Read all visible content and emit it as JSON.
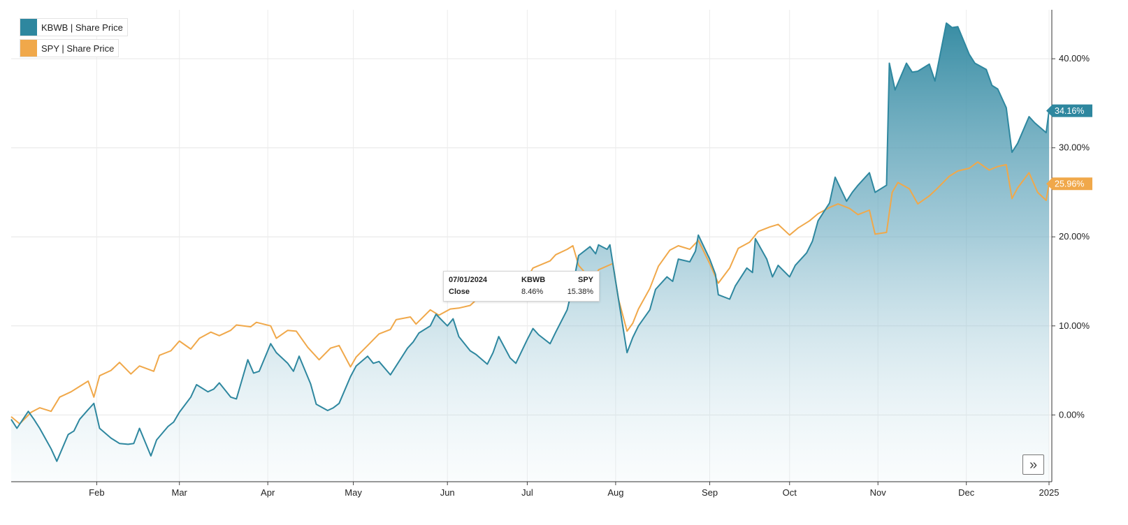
{
  "legend": {
    "items": [
      {
        "label": "KBWB | Share Price",
        "color": "#2e879f"
      },
      {
        "label": "SPY | Share Price",
        "color": "#f0a84a"
      }
    ]
  },
  "tooltip": {
    "date": "07/01/2024",
    "row_label": "Close",
    "col1": "KBWB",
    "col2": "SPY",
    "val1": "8.46%",
    "val2": "15.38%"
  },
  "end_labels": [
    "34.16%",
    "25.96%"
  ],
  "expand_icon": "double-chevron-right-icon",
  "expand_glyph": "»",
  "chart_data": {
    "type": "line",
    "x_axis": {
      "ticks": [
        "Feb",
        "Mar",
        "Apr",
        "May",
        "Jun",
        "Jul",
        "Aug",
        "Sep",
        "Oct",
        "Nov",
        "Dec",
        "2025"
      ],
      "start": "2024-01-02",
      "end": "2024-12-31"
    },
    "y_axis": {
      "ticks": [
        "0.00%",
        "10.00%",
        "20.00%",
        "30.00%",
        "40.00%"
      ],
      "tick_values": [
        0,
        10,
        20,
        30,
        40
      ],
      "ylim": [
        -7.5,
        45.5
      ],
      "unit": "%",
      "position": "right"
    },
    "grid": true,
    "legend_position": "top-left",
    "series": [
      {
        "name": "KBWB | Share Price",
        "color": "#2e879f",
        "area_fill": true,
        "last_value": 34.16,
        "points": [
          [
            "2024-01-02",
            -0.5
          ],
          [
            "2024-01-04",
            -1.5
          ],
          [
            "2024-01-08",
            0.4
          ],
          [
            "2024-01-10",
            -0.5
          ],
          [
            "2024-01-12",
            -1.5
          ],
          [
            "2024-01-16",
            -3.8
          ],
          [
            "2024-01-18",
            -5.2
          ],
          [
            "2024-01-22",
            -2.2
          ],
          [
            "2024-01-24",
            -1.8
          ],
          [
            "2024-01-26",
            -0.5
          ],
          [
            "2024-01-29",
            0.6
          ],
          [
            "2024-01-31",
            1.3
          ],
          [
            "2024-02-02",
            -1.5
          ],
          [
            "2024-02-06",
            -2.6
          ],
          [
            "2024-02-09",
            -3.2
          ],
          [
            "2024-02-12",
            -3.3
          ],
          [
            "2024-02-14",
            -3.2
          ],
          [
            "2024-02-16",
            -1.5
          ],
          [
            "2024-02-20",
            -4.6
          ],
          [
            "2024-02-22",
            -2.8
          ],
          [
            "2024-02-26",
            -1.3
          ],
          [
            "2024-02-28",
            -0.8
          ],
          [
            "2024-03-01",
            0.3
          ],
          [
            "2024-03-05",
            2.0
          ],
          [
            "2024-03-07",
            3.4
          ],
          [
            "2024-03-11",
            2.6
          ],
          [
            "2024-03-13",
            2.9
          ],
          [
            "2024-03-15",
            3.6
          ],
          [
            "2024-03-19",
            2.0
          ],
          [
            "2024-03-21",
            1.8
          ],
          [
            "2024-03-25",
            6.2
          ],
          [
            "2024-03-27",
            4.7
          ],
          [
            "2024-03-29",
            4.9
          ],
          [
            "2024-04-02",
            8.0
          ],
          [
            "2024-04-04",
            7.0
          ],
          [
            "2024-04-08",
            5.8
          ],
          [
            "2024-04-10",
            4.9
          ],
          [
            "2024-04-12",
            6.6
          ],
          [
            "2024-04-16",
            3.5
          ],
          [
            "2024-04-18",
            1.2
          ],
          [
            "2024-04-22",
            0.5
          ],
          [
            "2024-04-24",
            0.8
          ],
          [
            "2024-04-26",
            1.3
          ],
          [
            "2024-04-30",
            4.3
          ],
          [
            "2024-05-02",
            5.5
          ],
          [
            "2024-05-06",
            6.6
          ],
          [
            "2024-05-08",
            5.8
          ],
          [
            "2024-05-10",
            6.0
          ],
          [
            "2024-05-14",
            4.5
          ],
          [
            "2024-05-16",
            5.5
          ],
          [
            "2024-05-20",
            7.5
          ],
          [
            "2024-05-22",
            8.2
          ],
          [
            "2024-05-24",
            9.2
          ],
          [
            "2024-05-28",
            10.0
          ],
          [
            "2024-05-30",
            11.3
          ],
          [
            "2024-06-03",
            10.0
          ],
          [
            "2024-06-05",
            10.8
          ],
          [
            "2024-06-07",
            8.8
          ],
          [
            "2024-06-11",
            7.2
          ],
          [
            "2024-06-13",
            6.8
          ],
          [
            "2024-06-17",
            5.7
          ],
          [
            "2024-06-19",
            7.0
          ],
          [
            "2024-06-21",
            8.8
          ],
          [
            "2024-06-25",
            6.4
          ],
          [
            "2024-06-27",
            5.8
          ],
          [
            "2024-07-01",
            8.46
          ],
          [
            "2024-07-03",
            9.7
          ],
          [
            "2024-07-05",
            9.0
          ],
          [
            "2024-07-09",
            8.0
          ],
          [
            "2024-07-11",
            9.3
          ],
          [
            "2024-07-15",
            11.8
          ],
          [
            "2024-07-17",
            14.5
          ],
          [
            "2024-07-19",
            17.9
          ],
          [
            "2024-07-23",
            18.9
          ],
          [
            "2024-07-25",
            18.1
          ],
          [
            "2024-07-26",
            19.1
          ],
          [
            "2024-07-29",
            18.6
          ],
          [
            "2024-07-30",
            19.1
          ],
          [
            "2024-08-01",
            15.0
          ],
          [
            "2024-08-05",
            7.0
          ],
          [
            "2024-08-07",
            8.7
          ],
          [
            "2024-08-09",
            10.0
          ],
          [
            "2024-08-13",
            11.8
          ],
          [
            "2024-08-15",
            14.1
          ],
          [
            "2024-08-19",
            15.5
          ],
          [
            "2024-08-21",
            15.0
          ],
          [
            "2024-08-23",
            17.5
          ],
          [
            "2024-08-27",
            17.2
          ],
          [
            "2024-08-29",
            18.4
          ],
          [
            "2024-08-30",
            20.2
          ],
          [
            "2024-09-03",
            17.5
          ],
          [
            "2024-09-05",
            15.8
          ],
          [
            "2024-09-06",
            13.5
          ],
          [
            "2024-09-10",
            13.0
          ],
          [
            "2024-09-12",
            14.5
          ],
          [
            "2024-09-16",
            16.5
          ],
          [
            "2024-09-18",
            16.0
          ],
          [
            "2024-09-19",
            19.8
          ],
          [
            "2024-09-23",
            17.5
          ],
          [
            "2024-09-25",
            15.5
          ],
          [
            "2024-09-27",
            16.8
          ],
          [
            "2024-10-01",
            15.5
          ],
          [
            "2024-10-03",
            16.8
          ],
          [
            "2024-10-07",
            18.2
          ],
          [
            "2024-10-09",
            19.5
          ],
          [
            "2024-10-11",
            21.8
          ],
          [
            "2024-10-15",
            23.8
          ],
          [
            "2024-10-17",
            26.7
          ],
          [
            "2024-10-21",
            24.0
          ],
          [
            "2024-10-23",
            25.0
          ],
          [
            "2024-10-25",
            25.8
          ],
          [
            "2024-10-29",
            27.2
          ],
          [
            "2024-10-31",
            25.0
          ],
          [
            "2024-11-04",
            25.8
          ],
          [
            "2024-11-05",
            39.5
          ],
          [
            "2024-11-07",
            36.5
          ],
          [
            "2024-11-11",
            39.5
          ],
          [
            "2024-11-13",
            38.5
          ],
          [
            "2024-11-15",
            38.6
          ],
          [
            "2024-11-19",
            39.4
          ],
          [
            "2024-11-21",
            37.5
          ],
          [
            "2024-11-25",
            44.0
          ],
          [
            "2024-11-27",
            43.5
          ],
          [
            "2024-11-29",
            43.6
          ],
          [
            "2024-12-03",
            40.5
          ],
          [
            "2024-12-05",
            39.5
          ],
          [
            "2024-12-09",
            38.8
          ],
          [
            "2024-12-11",
            37.0
          ],
          [
            "2024-12-13",
            36.6
          ],
          [
            "2024-12-16",
            34.5
          ],
          [
            "2024-12-18",
            29.5
          ],
          [
            "2024-12-20",
            30.5
          ],
          [
            "2024-12-24",
            33.5
          ],
          [
            "2024-12-26",
            32.8
          ],
          [
            "2024-12-30",
            31.7
          ],
          [
            "2024-12-31",
            34.16
          ]
        ]
      },
      {
        "name": "SPY | Share Price",
        "color": "#f0a84a",
        "area_fill": false,
        "last_value": 25.96,
        "points": [
          [
            "2024-01-02",
            -0.2
          ],
          [
            "2024-01-05",
            -1.0
          ],
          [
            "2024-01-09",
            0.3
          ],
          [
            "2024-01-12",
            0.8
          ],
          [
            "2024-01-16",
            0.4
          ],
          [
            "2024-01-19",
            2.0
          ],
          [
            "2024-01-23",
            2.6
          ],
          [
            "2024-01-26",
            3.2
          ],
          [
            "2024-01-29",
            3.8
          ],
          [
            "2024-01-31",
            2.0
          ],
          [
            "2024-02-02",
            4.4
          ],
          [
            "2024-02-06",
            5.0
          ],
          [
            "2024-02-09",
            5.9
          ],
          [
            "2024-02-13",
            4.6
          ],
          [
            "2024-02-16",
            5.5
          ],
          [
            "2024-02-21",
            4.9
          ],
          [
            "2024-02-23",
            6.7
          ],
          [
            "2024-02-27",
            7.2
          ],
          [
            "2024-03-01",
            8.3
          ],
          [
            "2024-03-05",
            7.4
          ],
          [
            "2024-03-08",
            8.6
          ],
          [
            "2024-03-12",
            9.3
          ],
          [
            "2024-03-15",
            8.9
          ],
          [
            "2024-03-19",
            9.5
          ],
          [
            "2024-03-21",
            10.1
          ],
          [
            "2024-03-26",
            9.9
          ],
          [
            "2024-03-28",
            10.4
          ],
          [
            "2024-04-02",
            10.0
          ],
          [
            "2024-04-04",
            8.6
          ],
          [
            "2024-04-08",
            9.5
          ],
          [
            "2024-04-11",
            9.4
          ],
          [
            "2024-04-15",
            7.6
          ],
          [
            "2024-04-19",
            6.2
          ],
          [
            "2024-04-23",
            7.5
          ],
          [
            "2024-04-26",
            7.8
          ],
          [
            "2024-04-30",
            5.4
          ],
          [
            "2024-05-02",
            6.5
          ],
          [
            "2024-05-06",
            7.8
          ],
          [
            "2024-05-10",
            9.1
          ],
          [
            "2024-05-14",
            9.6
          ],
          [
            "2024-05-16",
            10.7
          ],
          [
            "2024-05-21",
            11.0
          ],
          [
            "2024-05-23",
            10.2
          ],
          [
            "2024-05-28",
            11.8
          ],
          [
            "2024-05-31",
            11.2
          ],
          [
            "2024-06-04",
            11.9
          ],
          [
            "2024-06-07",
            12.0
          ],
          [
            "2024-06-11",
            12.3
          ],
          [
            "2024-06-14",
            13.2
          ],
          [
            "2024-06-18",
            14.0
          ],
          [
            "2024-06-21",
            13.8
          ],
          [
            "2024-06-25",
            14.4
          ],
          [
            "2024-06-28",
            14.8
          ],
          [
            "2024-07-01",
            15.38
          ],
          [
            "2024-07-03",
            16.5
          ],
          [
            "2024-07-09",
            17.3
          ],
          [
            "2024-07-11",
            18.0
          ],
          [
            "2024-07-15",
            18.6
          ],
          [
            "2024-07-17",
            19.0
          ],
          [
            "2024-07-19",
            16.8
          ],
          [
            "2024-07-24",
            15.0
          ],
          [
            "2024-07-26",
            16.3
          ],
          [
            "2024-07-31",
            17.0
          ],
          [
            "2024-08-02",
            13.0
          ],
          [
            "2024-08-05",
            9.4
          ],
          [
            "2024-08-07",
            10.3
          ],
          [
            "2024-08-09",
            11.9
          ],
          [
            "2024-08-13",
            14.2
          ],
          [
            "2024-08-16",
            16.7
          ],
          [
            "2024-08-20",
            18.5
          ],
          [
            "2024-08-23",
            19.0
          ],
          [
            "2024-08-27",
            18.6
          ],
          [
            "2024-08-30",
            19.6
          ],
          [
            "2024-09-03",
            17.0
          ],
          [
            "2024-09-06",
            14.8
          ],
          [
            "2024-09-10",
            16.5
          ],
          [
            "2024-09-13",
            18.7
          ],
          [
            "2024-09-17",
            19.4
          ],
          [
            "2024-09-20",
            20.6
          ],
          [
            "2024-09-24",
            21.1
          ],
          [
            "2024-09-27",
            21.4
          ],
          [
            "2024-10-01",
            20.2
          ],
          [
            "2024-10-04",
            21.0
          ],
          [
            "2024-10-08",
            21.8
          ],
          [
            "2024-10-11",
            22.6
          ],
          [
            "2024-10-15",
            23.3
          ],
          [
            "2024-10-18",
            23.7
          ],
          [
            "2024-10-22",
            23.2
          ],
          [
            "2024-10-25",
            22.5
          ],
          [
            "2024-10-29",
            23.0
          ],
          [
            "2024-10-31",
            20.3
          ],
          [
            "2024-11-04",
            20.5
          ],
          [
            "2024-11-06",
            25.0
          ],
          [
            "2024-11-08",
            26.1
          ],
          [
            "2024-11-12",
            25.4
          ],
          [
            "2024-11-15",
            23.7
          ],
          [
            "2024-11-19",
            24.6
          ],
          [
            "2024-11-22",
            25.5
          ],
          [
            "2024-11-26",
            26.8
          ],
          [
            "2024-11-29",
            27.4
          ],
          [
            "2024-12-03",
            27.7
          ],
          [
            "2024-12-06",
            28.4
          ],
          [
            "2024-12-10",
            27.5
          ],
          [
            "2024-12-13",
            27.9
          ],
          [
            "2024-12-16",
            28.1
          ],
          [
            "2024-12-18",
            24.3
          ],
          [
            "2024-12-20",
            25.5
          ],
          [
            "2024-12-24",
            27.2
          ],
          [
            "2024-12-27",
            25.0
          ],
          [
            "2024-12-30",
            24.1
          ],
          [
            "2024-12-31",
            25.96
          ]
        ]
      }
    ]
  }
}
